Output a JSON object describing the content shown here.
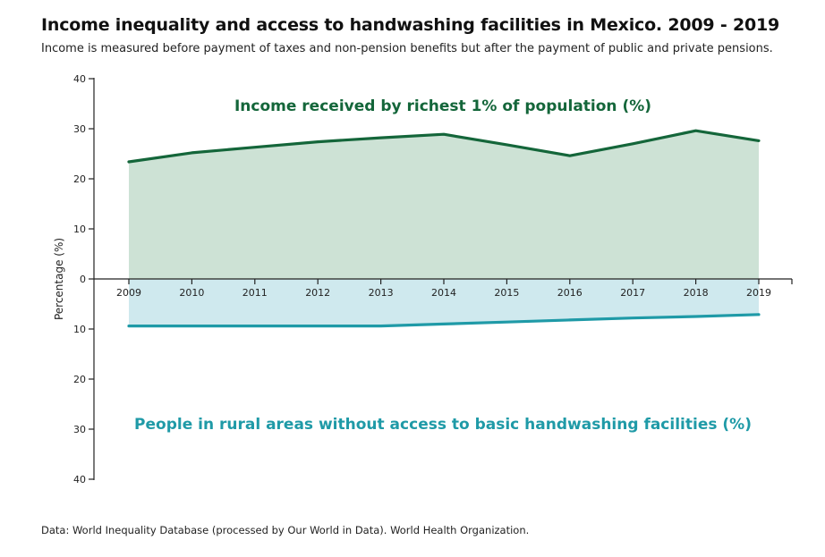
{
  "header": {
    "title": "Income inequality and access to handwashing facilities in Mexico. 2009 - 2019",
    "subtitle": "Income is measured before payment of taxes and non-pension benefits but after the payment of public and private pensions."
  },
  "footer": {
    "source": "Data: World Inequality Database (processed by Our World in Data). World Health Organization."
  },
  "chart_data": {
    "type": "area",
    "title": "Income inequality and access to handwashing facilities in Mexico. 2009 - 2019",
    "xlabel": "",
    "ylabel": "Percentage (%)",
    "x": [
      "2009",
      "2010",
      "2011",
      "2012",
      "2013",
      "2014",
      "2015",
      "2016",
      "2017",
      "2018",
      "2019"
    ],
    "y_ticks_up": [
      "0",
      "10",
      "20",
      "30",
      "40"
    ],
    "y_ticks_down": [
      "10",
      "20",
      "30",
      "40"
    ],
    "ylim_up": [
      0,
      40
    ],
    "ylim_down": [
      0,
      40
    ],
    "grid": false,
    "series": [
      {
        "name": "Income received by richest 1% of population (%)",
        "direction": "up",
        "values": [
          23.4,
          25.2,
          26.3,
          27.4,
          28.2,
          28.9,
          26.8,
          24.6,
          27.0,
          29.6,
          27.6
        ],
        "line_color": "#14663a",
        "fill_color": "#cde2d5"
      },
      {
        "name": "People in rural areas without access to basic handwashing facilities (%)",
        "direction": "down",
        "values": [
          9.4,
          9.4,
          9.4,
          9.4,
          9.4,
          9.0,
          8.6,
          8.2,
          7.8,
          7.5,
          7.1
        ],
        "line_color": "#1f9aa7",
        "fill_color": "#cfe9ee"
      }
    ]
  }
}
